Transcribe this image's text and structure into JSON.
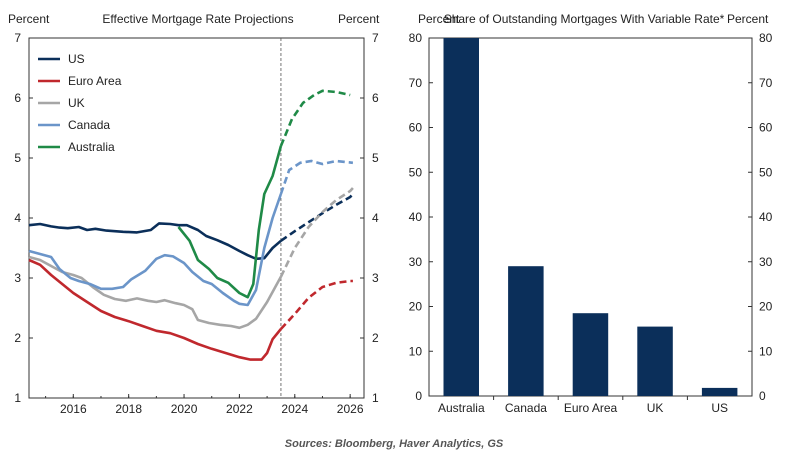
{
  "source": "Sources: Bloomberg, Haver Analytics, GS",
  "chart_data": [
    {
      "type": "line",
      "title": "Effective Mortgage Rate Projections",
      "ylabel_left": "Percent",
      "ylabel_right": "Percent",
      "ylim": [
        1,
        7
      ],
      "yticks": [
        "1",
        "2",
        "3",
        "4",
        "5",
        "6",
        "7"
      ],
      "xlim": [
        2014.4,
        2026.5
      ],
      "xticks": [
        "2016",
        "2018",
        "2020",
        "2022",
        "2024",
        "2026"
      ],
      "xtick_values": [
        2016,
        2018,
        2020,
        2022,
        2024,
        2026
      ],
      "forecast_start": 2023.5,
      "legend_position": "top-left",
      "series": [
        {
          "name": "US",
          "color": "#0b2f5a",
          "actual": [
            [
              2014.4,
              3.88
            ],
            [
              2014.8,
              3.9
            ],
            [
              2015.2,
              3.86
            ],
            [
              2015.5,
              3.84
            ],
            [
              2015.8,
              3.83
            ],
            [
              2016.2,
              3.85
            ],
            [
              2016.5,
              3.8
            ],
            [
              2016.8,
              3.82
            ],
            [
              2017.2,
              3.79
            ],
            [
              2017.5,
              3.78
            ],
            [
              2017.8,
              3.77
            ],
            [
              2018.3,
              3.76
            ],
            [
              2018.8,
              3.8
            ],
            [
              2019.1,
              3.91
            ],
            [
              2019.5,
              3.9
            ],
            [
              2019.8,
              3.88
            ],
            [
              2020.1,
              3.88
            ],
            [
              2020.5,
              3.8
            ],
            [
              2020.8,
              3.7
            ],
            [
              2021.2,
              3.63
            ],
            [
              2021.6,
              3.55
            ],
            [
              2022.0,
              3.45
            ],
            [
              2022.3,
              3.38
            ],
            [
              2022.6,
              3.32
            ],
            [
              2022.9,
              3.33
            ],
            [
              2023.2,
              3.5
            ],
            [
              2023.5,
              3.62
            ]
          ],
          "forecast": [
            [
              2023.5,
              3.62
            ],
            [
              2024.0,
              3.78
            ],
            [
              2024.5,
              3.93
            ],
            [
              2025.0,
              4.08
            ],
            [
              2025.5,
              4.22
            ],
            [
              2026.0,
              4.35
            ],
            [
              2026.1,
              4.4
            ]
          ]
        },
        {
          "name": "Euro Area",
          "color": "#c0282d",
          "actual": [
            [
              2014.4,
              3.3
            ],
            [
              2014.8,
              3.22
            ],
            [
              2015.2,
              3.05
            ],
            [
              2015.6,
              2.9
            ],
            [
              2016.0,
              2.75
            ],
            [
              2016.5,
              2.6
            ],
            [
              2017.0,
              2.45
            ],
            [
              2017.5,
              2.35
            ],
            [
              2018.0,
              2.28
            ],
            [
              2018.5,
              2.2
            ],
            [
              2019.0,
              2.12
            ],
            [
              2019.5,
              2.08
            ],
            [
              2020.0,
              2.0
            ],
            [
              2020.5,
              1.9
            ],
            [
              2021.0,
              1.82
            ],
            [
              2021.5,
              1.75
            ],
            [
              2022.0,
              1.68
            ],
            [
              2022.4,
              1.64
            ],
            [
              2022.8,
              1.64
            ],
            [
              2023.0,
              1.75
            ],
            [
              2023.2,
              1.98
            ],
            [
              2023.5,
              2.15
            ]
          ],
          "forecast": [
            [
              2023.5,
              2.15
            ],
            [
              2024.0,
              2.4
            ],
            [
              2024.5,
              2.67
            ],
            [
              2025.0,
              2.85
            ],
            [
              2025.5,
              2.92
            ],
            [
              2026.0,
              2.95
            ],
            [
              2026.1,
              2.95
            ]
          ]
        },
        {
          "name": "UK",
          "color": "#a6a6a6",
          "actual": [
            [
              2014.4,
              3.35
            ],
            [
              2014.8,
              3.3
            ],
            [
              2015.2,
              3.2
            ],
            [
              2015.6,
              3.1
            ],
            [
              2016.0,
              3.05
            ],
            [
              2016.3,
              3.0
            ],
            [
              2016.7,
              2.85
            ],
            [
              2017.1,
              2.72
            ],
            [
              2017.5,
              2.65
            ],
            [
              2017.9,
              2.62
            ],
            [
              2018.3,
              2.66
            ],
            [
              2018.7,
              2.62
            ],
            [
              2019.0,
              2.6
            ],
            [
              2019.3,
              2.63
            ],
            [
              2019.7,
              2.58
            ],
            [
              2020.0,
              2.55
            ],
            [
              2020.3,
              2.48
            ],
            [
              2020.5,
              2.3
            ],
            [
              2020.9,
              2.25
            ],
            [
              2021.3,
              2.22
            ],
            [
              2021.7,
              2.2
            ],
            [
              2022.0,
              2.17
            ],
            [
              2022.3,
              2.22
            ],
            [
              2022.6,
              2.32
            ],
            [
              2023.0,
              2.6
            ],
            [
              2023.5,
              3.02
            ]
          ],
          "forecast": [
            [
              2023.5,
              3.02
            ],
            [
              2024.0,
              3.5
            ],
            [
              2024.5,
              3.85
            ],
            [
              2025.0,
              4.1
            ],
            [
              2025.5,
              4.3
            ],
            [
              2026.0,
              4.45
            ],
            [
              2026.1,
              4.5
            ]
          ]
        },
        {
          "name": "Canada",
          "color": "#6b95c9",
          "actual": [
            [
              2014.4,
              3.45
            ],
            [
              2014.8,
              3.4
            ],
            [
              2015.2,
              3.35
            ],
            [
              2015.5,
              3.15
            ],
            [
              2015.9,
              3.0
            ],
            [
              2016.2,
              2.95
            ],
            [
              2016.6,
              2.9
            ],
            [
              2017.0,
              2.82
            ],
            [
              2017.4,
              2.82
            ],
            [
              2017.8,
              2.85
            ],
            [
              2018.1,
              2.98
            ],
            [
              2018.6,
              3.12
            ],
            [
              2019.0,
              3.32
            ],
            [
              2019.3,
              3.38
            ],
            [
              2019.6,
              3.36
            ],
            [
              2020.0,
              3.25
            ],
            [
              2020.3,
              3.1
            ],
            [
              2020.7,
              2.95
            ],
            [
              2021.0,
              2.9
            ],
            [
              2021.4,
              2.75
            ],
            [
              2021.8,
              2.62
            ],
            [
              2022.0,
              2.57
            ],
            [
              2022.3,
              2.55
            ],
            [
              2022.6,
              2.8
            ],
            [
              2022.9,
              3.5
            ],
            [
              2023.2,
              4.0
            ],
            [
              2023.5,
              4.4
            ]
          ],
          "forecast": [
            [
              2023.5,
              4.4
            ],
            [
              2023.8,
              4.8
            ],
            [
              2024.2,
              4.92
            ],
            [
              2024.6,
              4.95
            ],
            [
              2025.0,
              4.9
            ],
            [
              2025.5,
              4.95
            ],
            [
              2026.1,
              4.92
            ]
          ]
        },
        {
          "name": "Australia",
          "color": "#1f8a47",
          "actual": [
            [
              2019.8,
              3.85
            ],
            [
              2020.2,
              3.62
            ],
            [
              2020.5,
              3.3
            ],
            [
              2020.9,
              3.15
            ],
            [
              2021.2,
              3.0
            ],
            [
              2021.6,
              2.92
            ],
            [
              2022.0,
              2.75
            ],
            [
              2022.3,
              2.68
            ],
            [
              2022.5,
              2.9
            ],
            [
              2022.7,
              3.8
            ],
            [
              2022.9,
              4.4
            ],
            [
              2023.2,
              4.7
            ],
            [
              2023.5,
              5.2
            ]
          ],
          "forecast": [
            [
              2023.5,
              5.2
            ],
            [
              2023.9,
              5.65
            ],
            [
              2024.3,
              5.92
            ],
            [
              2024.7,
              6.05
            ],
            [
              2025.0,
              6.12
            ],
            [
              2025.5,
              6.1
            ],
            [
              2026.0,
              6.05
            ]
          ]
        }
      ]
    },
    {
      "type": "bar",
      "title": "Share of Outstanding Mortgages With Variable Rate*",
      "ylabel_left": "Percent",
      "ylabel_right": "Percent",
      "ylim": [
        0,
        80
      ],
      "yticks": [
        "0",
        "10",
        "20",
        "30",
        "40",
        "50",
        "60",
        "70",
        "80"
      ],
      "categories": [
        "Australia",
        "Canada",
        "Euro Area",
        "UK",
        "US"
      ],
      "values": [
        80,
        29,
        18.5,
        15.5,
        1.8
      ],
      "color": "#0b2f5a"
    }
  ]
}
